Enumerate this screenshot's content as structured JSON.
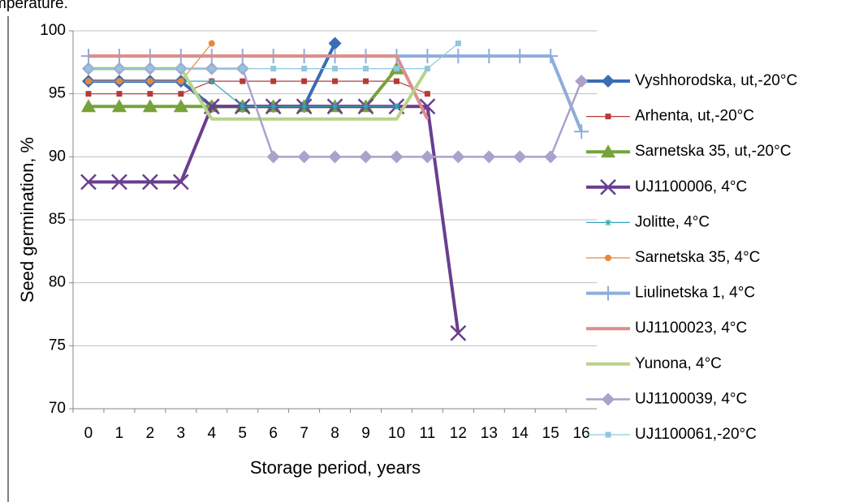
{
  "caption_fragment": "mperature.",
  "chart_data": {
    "type": "line",
    "x_label": "Storage period, years",
    "y_label": "Seed germination, %",
    "categories": [
      "0",
      "1",
      "2",
      "3",
      "4",
      "5",
      "6",
      "7",
      "8",
      "9",
      "10",
      "11",
      "12",
      "13",
      "14",
      "15",
      "16"
    ],
    "ylim": [
      70,
      100
    ],
    "yticks": [
      70,
      75,
      80,
      85,
      90,
      95,
      100
    ],
    "grid": true,
    "legend": "right",
    "series": [
      {
        "name": "Vyshhorodska, ut,-20°C",
        "color": "#3a6db4",
        "marker": "diamond",
        "width": 4,
        "values": [
          96,
          96,
          96,
          96,
          94,
          94,
          94,
          94,
          99,
          null,
          null,
          null,
          null,
          null,
          null,
          null,
          null
        ]
      },
      {
        "name": "Arhenta, ut,-20°C",
        "color": "#b53b38",
        "marker": "square",
        "width": 1.2,
        "values": [
          95,
          95,
          95,
          95,
          96,
          96,
          96,
          96,
          96,
          96,
          96,
          95,
          null,
          null,
          null,
          null,
          null
        ]
      },
      {
        "name": "Sarnetska 35, ut,-20°C",
        "color": "#76a33a",
        "marker": "triangle",
        "width": 4,
        "values": [
          94,
          94,
          94,
          94,
          94,
          94,
          94,
          94,
          94,
          94,
          97,
          null,
          null,
          null,
          null,
          null,
          null
        ]
      },
      {
        "name": "UJ1100006, 4°C",
        "color": "#6a3e8e",
        "marker": "x",
        "width": 4,
        "values": [
          88,
          88,
          88,
          88,
          94,
          94,
          94,
          94,
          94,
          94,
          94,
          94,
          76,
          null,
          null,
          null,
          null
        ]
      },
      {
        "name": "Jolitte, 4°C",
        "color": "#38a5b6",
        "marker": "star",
        "width": 1.2,
        "values": [
          96,
          96,
          96,
          96,
          96,
          94,
          94,
          94,
          94,
          94,
          94,
          null,
          null,
          null,
          null,
          null,
          null
        ]
      },
      {
        "name": "Sarnetska 35, 4°C",
        "color": "#e8893a",
        "marker": "circle",
        "width": 1.2,
        "values": [
          96,
          96,
          96,
          96,
          99,
          null,
          null,
          null,
          null,
          null,
          null,
          null,
          null,
          null,
          null,
          null,
          null
        ]
      },
      {
        "name": "Liulinetska 1, 4°C",
        "color": "#8eaddb",
        "marker": "plus",
        "width": 4,
        "values": [
          98,
          98,
          98,
          98,
          98,
          98,
          98,
          98,
          98,
          98,
          98,
          98,
          98,
          98,
          98,
          98,
          92
        ]
      },
      {
        "name": "UJ1100023, 4°C",
        "color": "#dc8e8c",
        "marker": "none",
        "width": 4,
        "values": [
          98,
          98,
          98,
          98,
          98,
          98,
          98,
          98,
          98,
          98,
          98,
          93,
          null,
          null,
          null,
          null,
          null
        ]
      },
      {
        "name": "Yunona, 4°C",
        "color": "#b7d48a",
        "marker": "none",
        "width": 4,
        "values": [
          97,
          97,
          97,
          97,
          93,
          93,
          93,
          93,
          93,
          93,
          93,
          97,
          null,
          null,
          null,
          null,
          null
        ]
      },
      {
        "name": "UJ1100039, 4°C",
        "color": "#aca1cb",
        "marker": "diamond",
        "width": 2.5,
        "values": [
          97,
          97,
          97,
          97,
          97,
          97,
          90,
          90,
          90,
          90,
          90,
          90,
          90,
          90,
          90,
          90,
          96
        ]
      },
      {
        "name": "UJ1100061,-20°C",
        "color": "#8fc7de",
        "marker": "square",
        "width": 1.2,
        "values": [
          97,
          97,
          97,
          97,
          97,
          97,
          97,
          97,
          97,
          97,
          97,
          97,
          99,
          null,
          null,
          null,
          null
        ]
      }
    ]
  }
}
